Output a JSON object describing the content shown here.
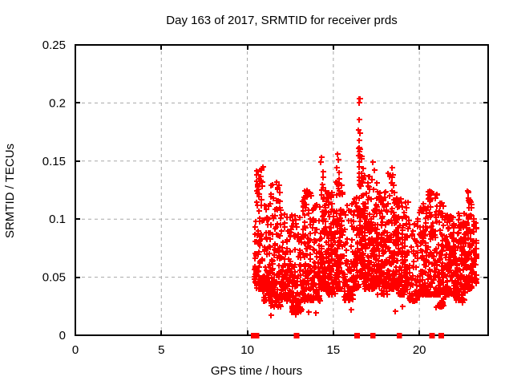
{
  "chart_data": {
    "type": "scatter",
    "title": "Day 163 of 2017, SRMTID for receiver prds",
    "xlabel": "GPS time / hours",
    "ylabel": "SRMTID / TECUs",
    "xlim": [
      0,
      24
    ],
    "ylim": [
      0,
      0.25
    ],
    "xticks": [
      0,
      5,
      10,
      15,
      20
    ],
    "xtick_labels": [
      "0",
      "5",
      "10",
      "15",
      "20"
    ],
    "yticks": [
      0,
      0.05,
      0.1,
      0.15,
      0.2,
      0.25
    ],
    "ytick_labels": [
      "0",
      "0.05",
      "0.1",
      "0.15",
      "0.2",
      "0.25"
    ],
    "grid": true,
    "legend": false,
    "marker": "plus",
    "marker_color": "#ff0000",
    "grid_color": "#a8a8a8",
    "axis_color": "#000000",
    "background": "#ffffff",
    "data_x_range": [
      10.3,
      23.35
    ],
    "y_peak": 0.204,
    "seed": 163,
    "streak_spacing": 0.16,
    "streak_jitter": 0.12,
    "shape_power": 1.7,
    "clusters_format": "[x_start_hours, x_end_hours, y_min, y_max, point_count]",
    "clusters": [
      [
        10.35,
        10.55,
        0.045,
        0.1,
        25
      ],
      [
        10.5,
        10.9,
        0.04,
        0.145,
        70
      ],
      [
        10.9,
        11.35,
        0.03,
        0.115,
        90
      ],
      [
        11.35,
        11.95,
        0.025,
        0.13,
        110
      ],
      [
        11.95,
        12.55,
        0.03,
        0.105,
        100
      ],
      [
        12.55,
        13.15,
        0.02,
        0.105,
        110
      ],
      [
        13.15,
        13.75,
        0.03,
        0.125,
        110
      ],
      [
        13.75,
        14.25,
        0.03,
        0.115,
        80
      ],
      [
        14.25,
        14.65,
        0.04,
        0.13,
        90
      ],
      [
        14.65,
        15.15,
        0.035,
        0.125,
        100
      ],
      [
        15.15,
        15.55,
        0.04,
        0.135,
        90
      ],
      [
        15.55,
        16.15,
        0.03,
        0.115,
        80
      ],
      [
        16.15,
        16.45,
        0.04,
        0.12,
        60
      ],
      [
        16.45,
        16.75,
        0.05,
        0.165,
        80
      ],
      [
        16.75,
        17.15,
        0.04,
        0.14,
        90
      ],
      [
        17.15,
        17.55,
        0.04,
        0.135,
        90
      ],
      [
        17.55,
        18.15,
        0.035,
        0.125,
        110
      ],
      [
        18.15,
        18.75,
        0.04,
        0.14,
        110
      ],
      [
        18.75,
        19.35,
        0.035,
        0.12,
        100
      ],
      [
        19.35,
        19.95,
        0.03,
        0.1,
        70
      ],
      [
        19.95,
        20.45,
        0.035,
        0.115,
        80
      ],
      [
        20.45,
        21.05,
        0.035,
        0.125,
        100
      ],
      [
        21.05,
        21.45,
        0.025,
        0.115,
        80
      ],
      [
        21.45,
        22.05,
        0.035,
        0.105,
        110
      ],
      [
        22.05,
        22.65,
        0.03,
        0.11,
        110
      ],
      [
        22.65,
        23.05,
        0.04,
        0.125,
        90
      ],
      [
        23.05,
        23.35,
        0.045,
        0.1,
        45
      ]
    ],
    "feature_points": [
      [
        16.5,
        0.204
      ],
      [
        16.56,
        0.204
      ],
      [
        16.52,
        0.2
      ],
      [
        16.5,
        0.186
      ],
      [
        16.47,
        0.177
      ],
      [
        16.53,
        0.174
      ],
      [
        16.5,
        0.168
      ],
      [
        16.54,
        0.16
      ],
      [
        16.47,
        0.155
      ],
      [
        16.5,
        0.149
      ],
      [
        16.49,
        0.145
      ],
      [
        15.22,
        0.156
      ],
      [
        15.28,
        0.151
      ],
      [
        15.2,
        0.144
      ],
      [
        15.33,
        0.14
      ],
      [
        14.33,
        0.153
      ],
      [
        14.28,
        0.149
      ],
      [
        14.42,
        0.141
      ],
      [
        14.38,
        0.136
      ],
      [
        17.3,
        0.149
      ],
      [
        17.36,
        0.142
      ],
      [
        17.26,
        0.134
      ],
      [
        18.4,
        0.144
      ],
      [
        18.46,
        0.138
      ],
      [
        18.35,
        0.131
      ],
      [
        11.68,
        0.132
      ],
      [
        11.75,
        0.127
      ],
      [
        10.62,
        0.141
      ],
      [
        10.66,
        0.135
      ],
      [
        10.58,
        0.13
      ],
      [
        13.32,
        0.124
      ],
      [
        13.27,
        0.119
      ],
      [
        20.58,
        0.124
      ],
      [
        20.64,
        0.118
      ],
      [
        22.8,
        0.124
      ],
      [
        22.85,
        0.118
      ],
      [
        12.15,
        0.104
      ],
      [
        11.35,
        0.017
      ],
      [
        12.8,
        0.018
      ],
      [
        13.55,
        0.02
      ],
      [
        14.0,
        0.019
      ],
      [
        16.05,
        0.022
      ],
      [
        18.6,
        0.021
      ],
      [
        19.0,
        0.025
      ],
      [
        20.95,
        0.024
      ],
      [
        21.2,
        0.026
      ],
      [
        22.5,
        0.028
      ]
    ],
    "zero_marks_format": "solid red blocks on x-axis (points at y=0); x in hours, w = width in hours",
    "zero_marks": [
      {
        "x": 10.45,
        "w": 0.5
      },
      {
        "x": 12.87,
        "w": 0.32
      },
      {
        "x": 16.38,
        "w": 0.32
      },
      {
        "x": 17.3,
        "w": 0.32
      },
      {
        "x": 18.84,
        "w": 0.32
      },
      {
        "x": 20.73,
        "w": 0.32
      },
      {
        "x": 21.27,
        "w": 0.32
      }
    ]
  }
}
